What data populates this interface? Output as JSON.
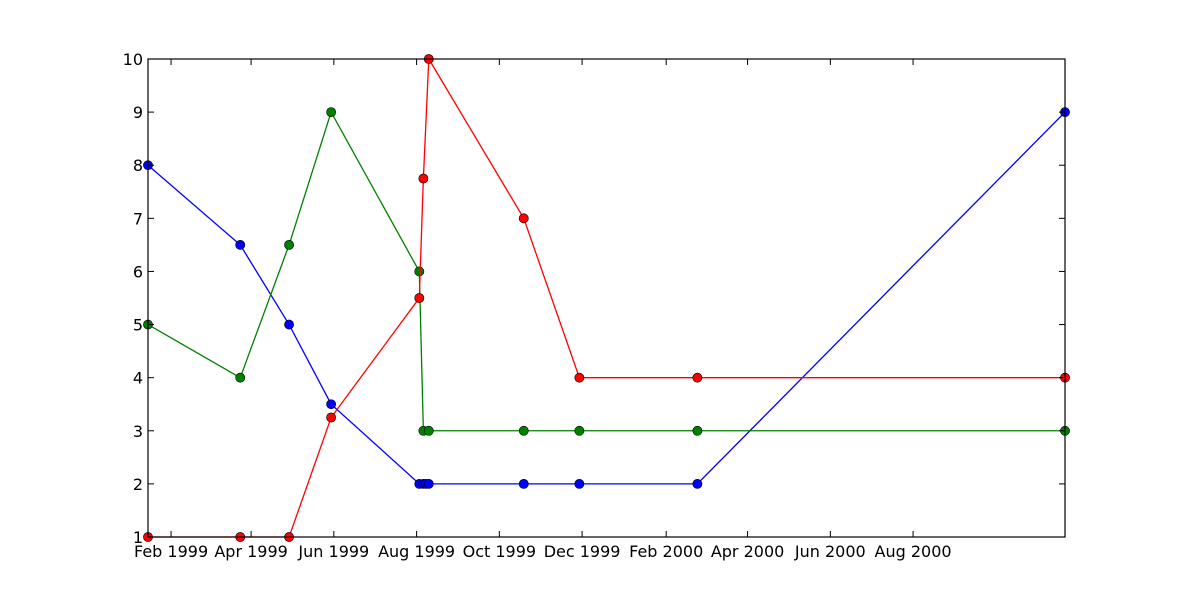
{
  "chart_data": {
    "type": "line",
    "title": "",
    "xlabel": "",
    "ylabel": "",
    "xlim": [
      "1999-01-15",
      "2000-11-21"
    ],
    "ylim": [
      1,
      10
    ],
    "x_ticks": [
      {
        "date": "1999-02-01",
        "label": "Feb 1999"
      },
      {
        "date": "1999-04-01",
        "label": "Apr 1999"
      },
      {
        "date": "1999-06-01",
        "label": "Jun 1999"
      },
      {
        "date": "1999-08-01",
        "label": "Aug 1999"
      },
      {
        "date": "1999-10-01",
        "label": "Oct 1999"
      },
      {
        "date": "1999-12-01",
        "label": "Dec 1999"
      },
      {
        "date": "2000-02-01",
        "label": "Feb 2000"
      },
      {
        "date": "2000-04-01",
        "label": "Apr 2000"
      },
      {
        "date": "2000-06-01",
        "label": "Jun 2000"
      },
      {
        "date": "2000-08-01",
        "label": "Aug 2000"
      }
    ],
    "y_ticks": [
      1,
      2,
      3,
      4,
      5,
      6,
      7,
      8,
      9,
      10
    ],
    "grid": false,
    "series": [
      {
        "color": "#0000ff",
        "marker": "circle",
        "points": [
          {
            "x": "1999-01-15",
            "y": 8
          },
          {
            "x": "1999-03-24",
            "y": 6.5
          },
          {
            "x": "1999-04-29",
            "y": 5
          },
          {
            "x": "1999-05-30",
            "y": 3.5
          },
          {
            "x": "1999-08-03",
            "y": 2
          },
          {
            "x": "1999-08-06",
            "y": 2
          },
          {
            "x": "1999-08-08",
            "y": 2
          },
          {
            "x": "1999-08-10",
            "y": 2
          },
          {
            "x": "1999-10-19",
            "y": 2
          },
          {
            "x": "1999-11-29",
            "y": 2
          },
          {
            "x": "2000-02-24",
            "y": 2
          },
          {
            "x": "2000-11-21",
            "y": 9
          }
        ]
      },
      {
        "color": "#008000",
        "marker": "circle",
        "points": [
          {
            "x": "1999-01-15",
            "y": 5
          },
          {
            "x": "1999-03-24",
            "y": 4
          },
          {
            "x": "1999-04-29",
            "y": 6.5
          },
          {
            "x": "1999-05-30",
            "y": 9
          },
          {
            "x": "1999-08-03",
            "y": 6
          },
          {
            "x": "1999-08-06",
            "y": 3
          },
          {
            "x": "1999-08-10",
            "y": 3
          },
          {
            "x": "1999-10-19",
            "y": 3
          },
          {
            "x": "1999-11-29",
            "y": 3
          },
          {
            "x": "2000-02-24",
            "y": 3
          },
          {
            "x": "2000-11-21",
            "y": 3
          }
        ]
      },
      {
        "color": "#ff0000",
        "marker": "circle",
        "points": [
          {
            "x": "1999-01-15",
            "y": 1
          },
          {
            "x": "1999-03-24",
            "y": 1
          },
          {
            "x": "1999-04-29",
            "y": 1
          },
          {
            "x": "1999-05-30",
            "y": 3.25
          },
          {
            "x": "1999-08-03",
            "y": 5.5
          },
          {
            "x": "1999-08-06",
            "y": 7.75
          },
          {
            "x": "1999-08-10",
            "y": 10
          },
          {
            "x": "1999-10-19",
            "y": 7
          },
          {
            "x": "1999-11-29",
            "y": 4
          },
          {
            "x": "2000-02-24",
            "y": 4
          },
          {
            "x": "2000-11-21",
            "y": 4
          }
        ]
      }
    ]
  }
}
